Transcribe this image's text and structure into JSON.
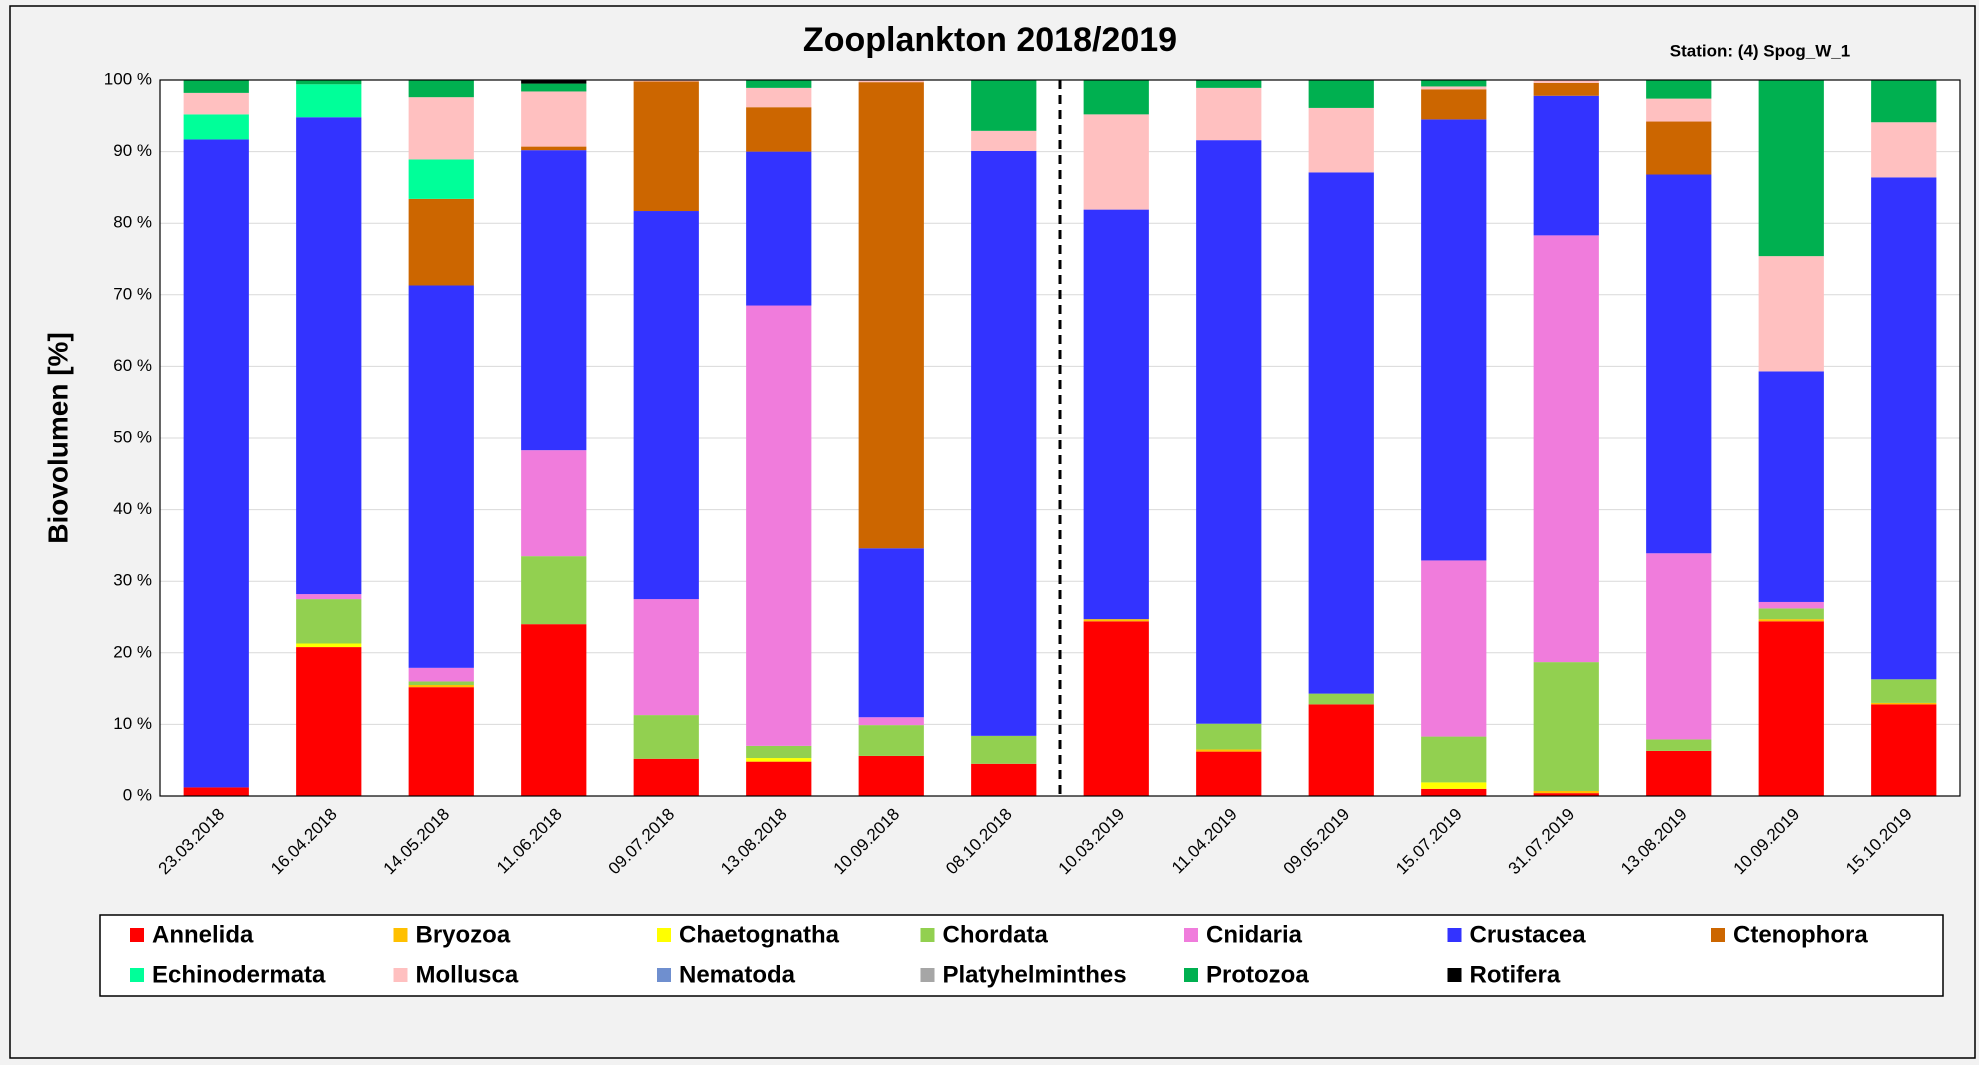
{
  "chart_data": {
    "type": "stacked_bar",
    "title": "Zooplankton 2018/2019",
    "subtitle": "Station: (4) Spog_W_1",
    "y_label": "Biovolumen [%]",
    "categories": [
      "23.03.2018",
      "16.04.2018",
      "14.05.2018",
      "11.06.2018",
      "09.07.2018",
      "13.08.2018",
      "10.09.2018",
      "08.10.2018",
      "10.03.2019",
      "11.04.2019",
      "09.05.2019",
      "15.07.2019",
      "31.07.2019",
      "13.08.2019",
      "10.09.2019",
      "15.10.2019"
    ],
    "ylim": [
      0,
      100
    ],
    "yticks": [
      {
        "value": 0,
        "label": "0 %"
      },
      {
        "value": 10,
        "label": "10 %"
      },
      {
        "value": 20,
        "label": "20 %"
      },
      {
        "value": 30,
        "label": "30 %"
      },
      {
        "value": 40,
        "label": "40 %"
      },
      {
        "value": 50,
        "label": "50 %"
      },
      {
        "value": 60,
        "label": "60 %"
      },
      {
        "value": 70,
        "label": "70 %"
      },
      {
        "value": 80,
        "label": "80 %"
      },
      {
        "value": 90,
        "label": "90 %"
      },
      {
        "value": 100,
        "label": "100 %"
      }
    ],
    "grid": true,
    "legend": "bottom",
    "series": [
      {
        "name": "Annelida",
        "color": "#ff0000",
        "values": [
          1.2,
          20.8,
          15.2,
          24,
          5.2,
          4.8,
          5.6,
          4.5,
          24.4,
          6.2,
          12.8,
          1.0,
          0.4,
          6.3,
          24.4,
          12.8
        ]
      },
      {
        "name": "Bryozoa",
        "color": "#ffc000",
        "values": [
          0,
          0,
          0.3,
          0,
          0,
          0,
          0,
          0,
          0.3,
          0.3,
          0,
          0,
          0.3,
          0,
          0.3,
          0.2
        ]
      },
      {
        "name": "Chaetognatha",
        "color": "#ffff00",
        "values": [
          0,
          0.5,
          0,
          0,
          0,
          0.5,
          0,
          0,
          0,
          0,
          0,
          0.9,
          0,
          0,
          0,
          0
        ]
      },
      {
        "name": "Chordata",
        "color": "#92d050",
        "values": [
          0,
          6.2,
          0.5,
          9.5,
          6.1,
          1.7,
          4.3,
          3.9,
          0,
          3.6,
          1.5,
          6.4,
          18,
          1.6,
          1.5,
          3.3
        ]
      },
      {
        "name": "Cnidaria",
        "color": "#f07cdc",
        "values": [
          0,
          0.7,
          1.9,
          14.8,
          16.2,
          61.5,
          1.1,
          0,
          0,
          0,
          0,
          24.6,
          59.6,
          26,
          0.9,
          0
        ]
      },
      {
        "name": "Crustacea",
        "color": "#3333ff",
        "values": [
          90.5,
          66.6,
          53.4,
          41.9,
          54.2,
          21.5,
          23.6,
          81.7,
          57.2,
          81.5,
          72.8,
          61.6,
          19.5,
          52.9,
          32.2,
          70.1
        ]
      },
      {
        "name": "Ctenophora",
        "color": "#cc6600",
        "values": [
          0,
          0,
          12.1,
          0.5,
          18.1,
          6.2,
          65.1,
          0,
          0,
          0,
          0,
          4.2,
          1.8,
          7.4,
          0,
          0
        ]
      },
      {
        "name": "Echinodermata",
        "color": "#00ff99",
        "values": [
          3.5,
          4.6,
          5.5,
          0,
          0,
          0,
          0,
          0,
          0,
          0,
          0,
          0,
          0,
          0,
          0,
          0
        ]
      },
      {
        "name": "Mollusca",
        "color": "#ffc0c0",
        "values": [
          3.0,
          0,
          8.7,
          7.7,
          0.2,
          2.7,
          0.3,
          2.8,
          13.3,
          7.3,
          9.0,
          0.4,
          0.4,
          3.2,
          16.1,
          7.7
        ]
      },
      {
        "name": "Nematoda",
        "color": "#6f8fcf",
        "values": [
          0,
          0,
          0,
          0,
          0,
          0,
          0,
          0,
          0,
          0,
          0,
          0,
          0,
          0,
          0,
          0
        ]
      },
      {
        "name": "Platyhelminthes",
        "color": "#a6a6a6",
        "values": [
          0,
          0,
          0,
          0,
          0,
          0,
          0,
          0,
          0,
          0,
          0,
          0,
          0,
          0,
          0,
          0
        ]
      },
      {
        "name": "Protozoa",
        "color": "#00b050",
        "values": [
          1.8,
          0.6,
          2.4,
          1.1,
          0,
          1.1,
          0,
          7.1,
          4.8,
          1.1,
          3.9,
          0.9,
          0,
          2.6,
          24.6,
          5.9
        ]
      },
      {
        "name": "Rotifera",
        "color": "#000000",
        "values": [
          0,
          0,
          0,
          0.5,
          0,
          0,
          0,
          0,
          0,
          0,
          0,
          0,
          0,
          0,
          0,
          0
        ]
      }
    ]
  }
}
